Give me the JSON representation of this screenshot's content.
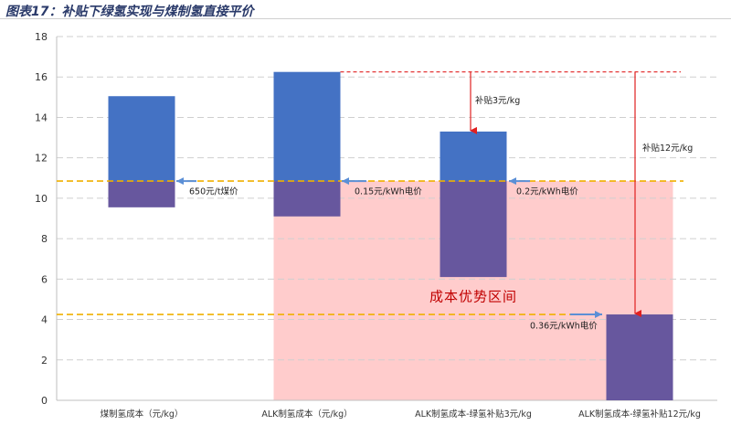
{
  "figure_title": "图表17：补贴下绿氢实现与煤制氢直接平价",
  "chart_data": {
    "type": "bar",
    "ylim": [
      0,
      18
    ],
    "yticks": [
      0,
      2,
      4,
      6,
      8,
      10,
      12,
      14,
      16,
      18
    ],
    "grid": true,
    "categories": [
      "煤制氢成本（元/kg）",
      "ALK制氢成本（元/kg）",
      "ALK制氢成本-绿氢补贴3元/kg",
      "ALK制氢成本-绿氢补贴12元/kg"
    ],
    "bars": [
      {
        "low": 9.55,
        "high": 15.05,
        "split": 10.85
      },
      {
        "low": 9.1,
        "high": 16.25,
        "split": 10.85
      },
      {
        "low": 6.1,
        "high": 13.3,
        "split": 10.85
      },
      {
        "low": 0,
        "high": 4.25,
        "split": 10.85
      }
    ],
    "colors": {
      "upper": "#4472c4",
      "lower": "#67579e",
      "zone": "#ffcccc",
      "ref_line": "#f0b000",
      "subsidy_line": "#e02020",
      "price_arrow": "#5b8fd6"
    },
    "reference_lines": [
      10.85,
      4.25
    ],
    "subsidy_top": 16.25,
    "price_annotations": [
      "650元/t煤价",
      "0.15元/kWh电价",
      "0.2元/kWh电价",
      "0.36元/kWh电价"
    ],
    "subsidy_annotations": [
      "补贴3元/kg",
      "补贴12元/kg"
    ],
    "zone": {
      "label": "成本优势区间",
      "low": 0,
      "high": 10.85
    }
  }
}
